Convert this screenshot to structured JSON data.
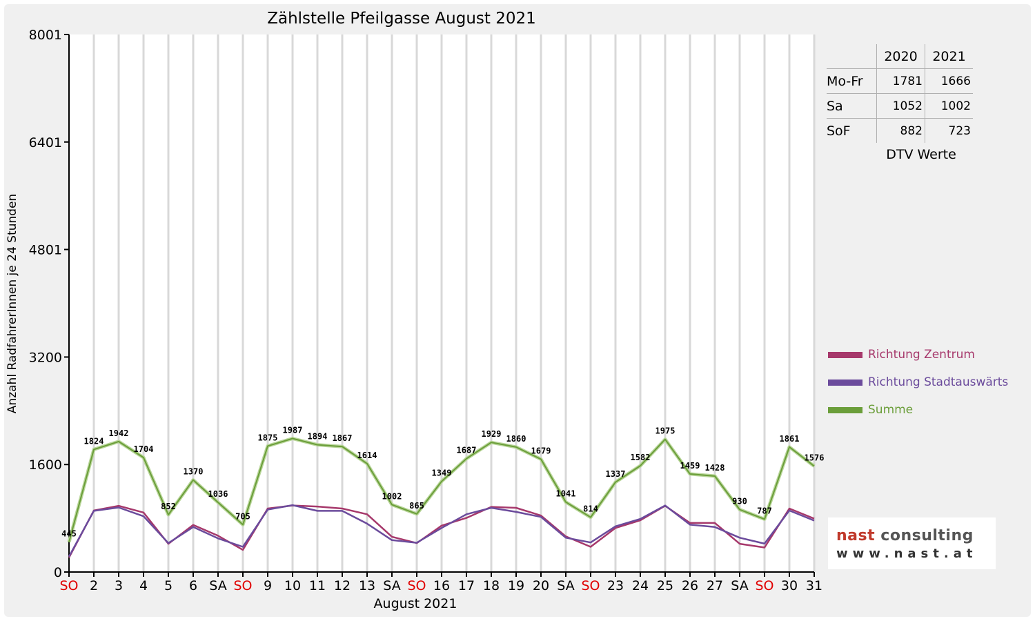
{
  "chart_data": {
    "type": "line",
    "title": "Zählstelle Pfeilgasse August 2021",
    "ylabel": "Anzahl RadfahrerInnen je 24 Stunden",
    "xlabel": "August 2021",
    "ylim": [
      0,
      8001
    ],
    "yticks": [
      0,
      1600,
      3200,
      4801,
      6401,
      8001
    ],
    "grid": "vertical",
    "legend_position": "right",
    "categories": [
      "SO",
      "2",
      "3",
      "4",
      "5",
      "6",
      "SA",
      "SO",
      "9",
      "10",
      "11",
      "12",
      "13",
      "SA",
      "SO",
      "16",
      "17",
      "18",
      "19",
      "20",
      "SA",
      "SO",
      "23",
      "24",
      "25",
      "26",
      "27",
      "SA",
      "SO",
      "30",
      "31"
    ],
    "category_colors": [
      "#e00000",
      "#000000",
      "#000000",
      "#000000",
      "#000000",
      "#000000",
      "#000000",
      "#e00000",
      "#000000",
      "#000000",
      "#000000",
      "#000000",
      "#000000",
      "#000000",
      "#e00000",
      "#000000",
      "#000000",
      "#000000",
      "#000000",
      "#000000",
      "#000000",
      "#e00000",
      "#000000",
      "#000000",
      "#000000",
      "#000000",
      "#000000",
      "#000000",
      "#e00000",
      "#000000",
      "#000000"
    ],
    "series": [
      {
        "name": "Richtung Zentrum",
        "color": "#a6386b",
        "values": [
          215,
          915,
          985,
          885,
          420,
          700,
          540,
          330,
          945,
          990,
          975,
          945,
          860,
          525,
          430,
          690,
          805,
          970,
          955,
          840,
          530,
          375,
          655,
          770,
          985,
          730,
          730,
          420,
          365,
          945,
          795
        ]
      },
      {
        "name": "Richtung Stadtauswärts",
        "color": "#6b4b9c",
        "values": [
          230,
          910,
          960,
          830,
          430,
          670,
          500,
          375,
          930,
          995,
          910,
          910,
          720,
          475,
          435,
          655,
          860,
          955,
          895,
          820,
          510,
          440,
          680,
          790,
          990,
          705,
          670,
          510,
          422,
          915,
          765
        ]
      },
      {
        "name": "Summe",
        "color": "#6b9e3a",
        "values": [
          445,
          1824,
          1942,
          1704,
          852,
          1370,
          1036,
          705,
          1875,
          1987,
          1894,
          1867,
          1614,
          1002,
          865,
          1349,
          1687,
          1929,
          1860,
          1679,
          1041,
          814,
          1337,
          1582,
          1975,
          1459,
          1428,
          930,
          787,
          1861,
          1576
        ],
        "labels": [
          "445",
          "1824",
          "1942",
          "1704",
          "852",
          "1370",
          "1036",
          "705",
          "1875",
          "1987",
          "1894",
          "1867",
          "1614",
          "1002",
          "865",
          "1349",
          "1687",
          "1929",
          "1860",
          "1679",
          "1041",
          "814",
          "1337",
          "1582",
          "1975",
          "1459",
          "1428",
          "930",
          "787",
          "1861",
          "1576"
        ]
      }
    ]
  },
  "dtv_table": {
    "headers": [
      "",
      "2020",
      "2021"
    ],
    "rows": [
      {
        "label": "Mo-Fr",
        "v2020": "1781",
        "v2021": "1666"
      },
      {
        "label": "Sa",
        "v2020": "1052",
        "v2021": "1002"
      },
      {
        "label": "SoF",
        "v2020": "882",
        "v2021": "723"
      }
    ],
    "caption": "DTV Werte"
  },
  "logo": {
    "main_left": "nast",
    "main_right": "consulting",
    "sub": "www.nast.at"
  }
}
